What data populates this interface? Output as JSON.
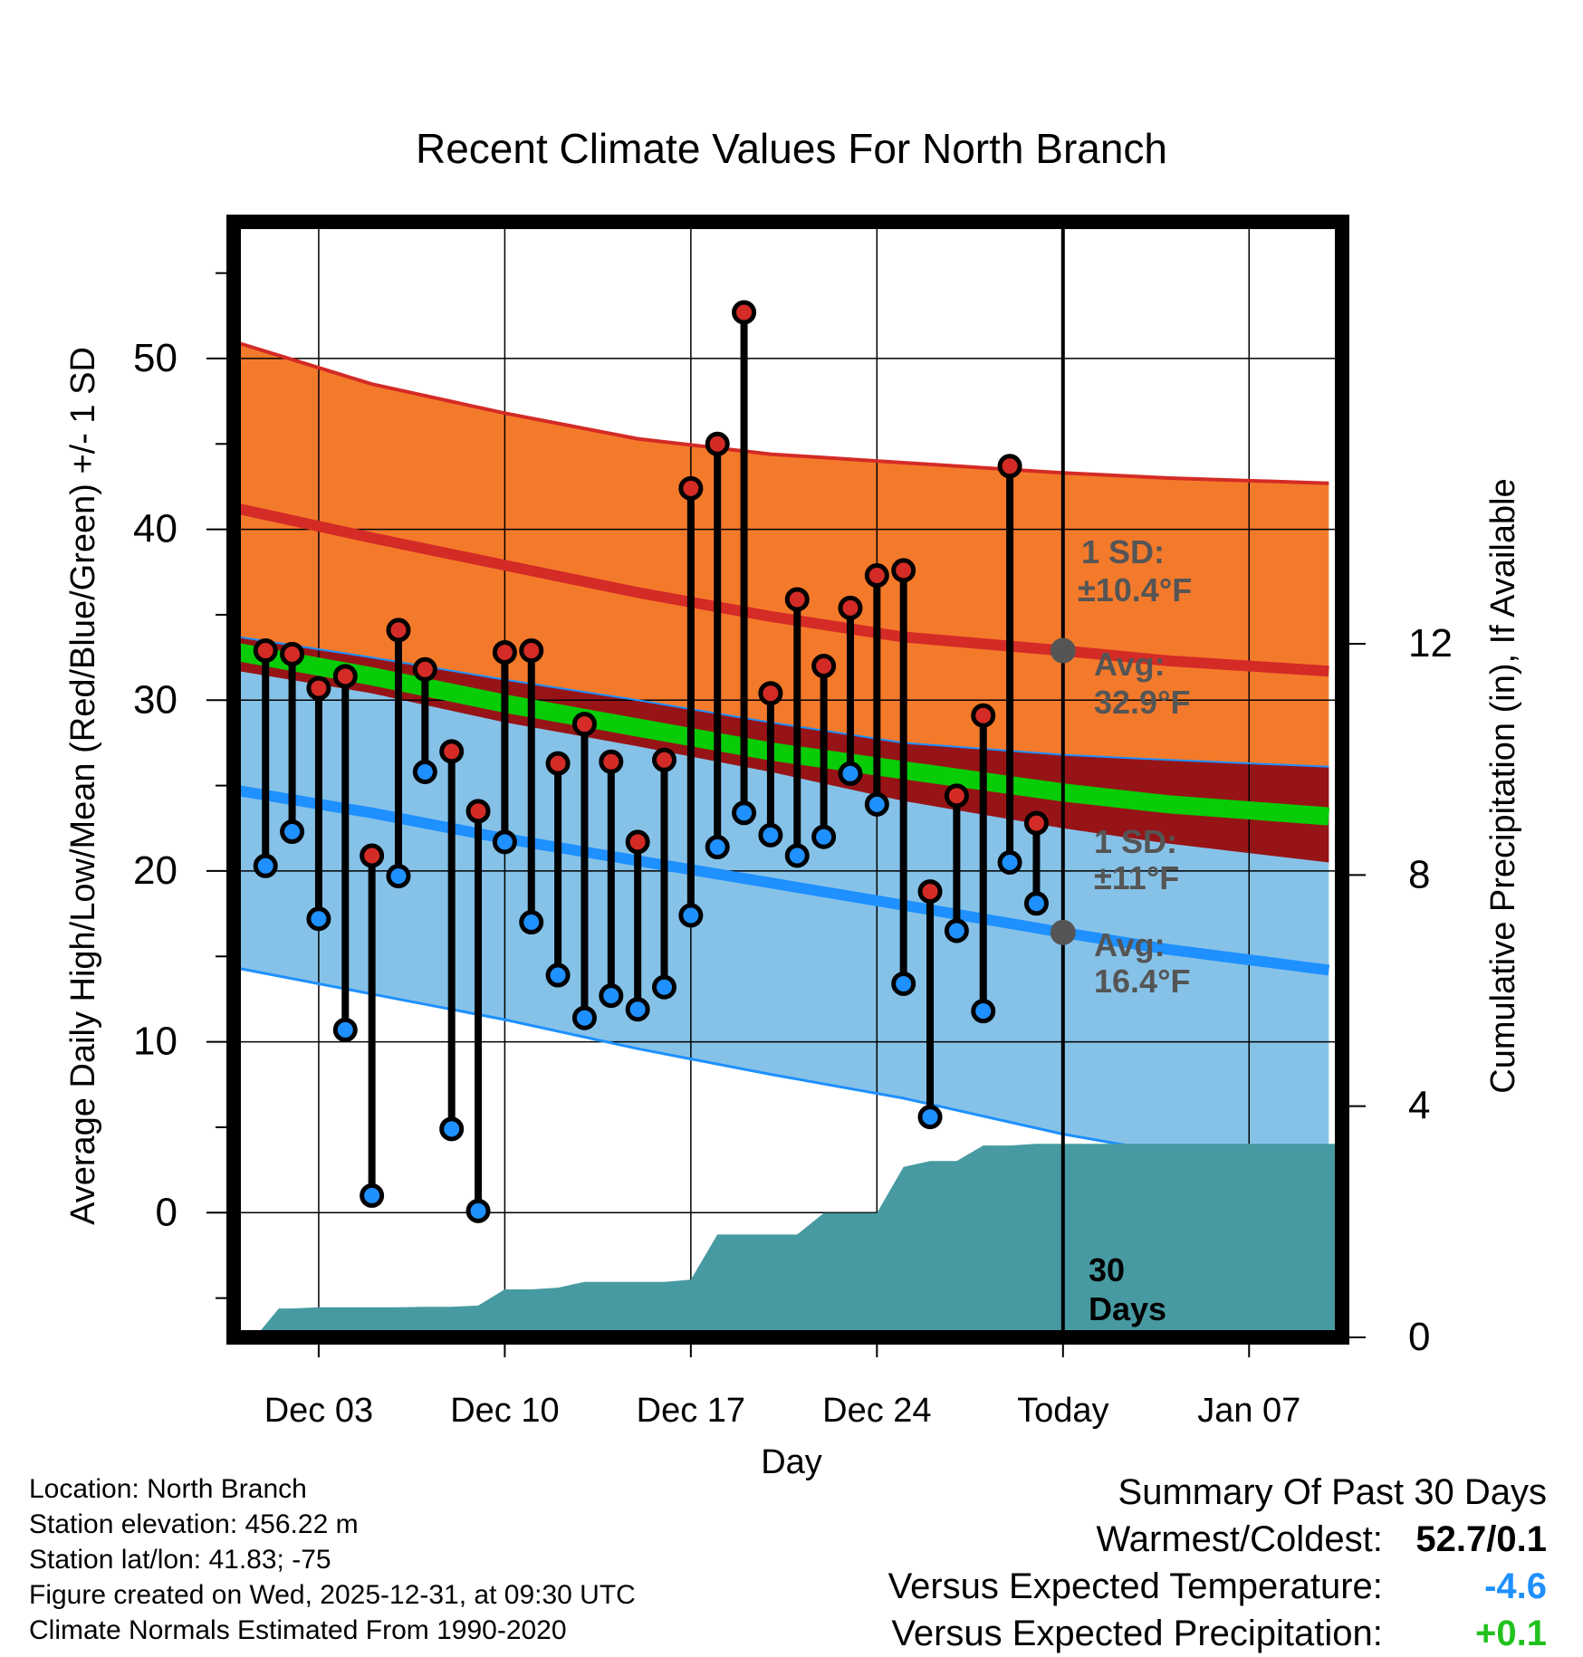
{
  "chart_data": {
    "type": "line",
    "title": "Recent Climate Values For North Branch",
    "xlabel": "Day",
    "ylabel_left": "Average Daily High/Low/Mean (Red/Blue/Green) +/- 1 SD",
    "ylabel_right": "Cumulative Precipitation (in), If Available",
    "x_ticks": [
      {
        "day": 3,
        "label": "Dec 03"
      },
      {
        "day": 10,
        "label": "Dec 10"
      },
      {
        "day": 17,
        "label": "Dec 17"
      },
      {
        "day": 24,
        "label": "Dec 24"
      },
      {
        "day": 31,
        "label": "Today"
      },
      {
        "day": 38,
        "label": "Jan 07"
      }
    ],
    "xlim": [
      -0.2,
      41.5
    ],
    "ylim_left": [
      -7.3,
      58
    ],
    "ylim_right": [
      0,
      19.3
    ],
    "y_left_ticks": [
      0,
      10,
      20,
      30,
      40,
      50
    ],
    "y_right_ticks": [
      0,
      4,
      8,
      12
    ],
    "normals": {
      "days": [
        0,
        5,
        10,
        15,
        20,
        25,
        31,
        35,
        41
      ],
      "high_mean": [
        41.2,
        39.5,
        37.9,
        36.3,
        34.9,
        33.7,
        32.9,
        32.3,
        31.7
      ],
      "high_upper": [
        50.9,
        48.5,
        46.8,
        45.3,
        44.4,
        43.9,
        43.3,
        43.0,
        42.7
      ],
      "high_lower": [
        31.7,
        30.4,
        28.7,
        27.3,
        25.8,
        24.1,
        22.5,
        21.6,
        20.5
      ],
      "mean": [
        32.8,
        31.4,
        29.8,
        28.4,
        27.0,
        25.9,
        24.6,
        23.9,
        23.2
      ],
      "low_mean": [
        24.7,
        23.4,
        21.9,
        20.6,
        19.3,
        18.0,
        16.4,
        15.4,
        14.2
      ],
      "low_upper": [
        33.7,
        32.5,
        31.2,
        30.0,
        28.7,
        27.5,
        26.8,
        26.5,
        26.1
      ],
      "low_lower": [
        14.3,
        12.8,
        11.3,
        9.6,
        8.1,
        6.7,
        4.6,
        3.5,
        1.8
      ]
    },
    "series": [
      {
        "name": "High",
        "color": "#d42b26",
        "values": [
          32.9,
          32.7,
          30.7,
          31.4,
          20.9,
          34.1,
          31.8,
          27.0,
          23.5,
          32.8,
          32.9,
          26.3,
          28.6,
          26.4,
          21.7,
          26.5,
          42.4,
          45.0,
          52.7,
          30.4,
          35.9,
          32.0,
          35.4,
          37.3,
          37.6,
          18.8,
          24.4,
          29.1,
          43.7,
          22.8
        ]
      },
      {
        "name": "Low",
        "color": "#1e90ff",
        "values": [
          20.3,
          22.3,
          17.2,
          10.7,
          1.0,
          19.7,
          25.8,
          4.9,
          0.1,
          21.7,
          17.0,
          13.9,
          11.4,
          12.7,
          11.9,
          13.2,
          17.4,
          21.4,
          23.4,
          22.1,
          20.9,
          22.0,
          25.7,
          23.9,
          13.4,
          5.6,
          16.5,
          11.8,
          20.5,
          18.1
        ]
      },
      {
        "name": "Cumulative Precipitation",
        "days": [
          0.6,
          1.5,
          2,
          3,
          4,
          5,
          6,
          7,
          8,
          9,
          10,
          11,
          12,
          13,
          14,
          15,
          16,
          17,
          18,
          19,
          20,
          21,
          22,
          23,
          24,
          25,
          26,
          27,
          28,
          29,
          30,
          31,
          32,
          41.5
        ],
        "values": [
          0,
          0.5,
          0.5,
          0.52,
          0.52,
          0.52,
          0.52,
          0.53,
          0.53,
          0.55,
          0.83,
          0.83,
          0.86,
          0.96,
          0.96,
          0.96,
          0.96,
          1.0,
          1.78,
          1.78,
          1.78,
          1.78,
          2.15,
          2.15,
          2.15,
          2.95,
          3.05,
          3.05,
          3.32,
          3.32,
          3.35,
          3.35,
          3.35,
          3.35
        ]
      }
    ],
    "annotations": {
      "high_sd_label": "1 SD:",
      "high_sd_value": "±10.4°F",
      "high_avg_label": "Avg:",
      "high_avg_value": "32.9°F",
      "low_sd_label": "1 SD:",
      "low_sd_value": "±11°F",
      "low_avg_label": "Avg:",
      "low_avg_value": "16.4°F",
      "window_count": "30",
      "window_unit": "Days"
    },
    "today_day": 31
  },
  "colors": {
    "high_band": "#f47a2b",
    "high_line": "#d42b26",
    "overlap_band": "#971416",
    "mean_line": "#08cc08",
    "low_band": "#86c2e8",
    "low_line": "#1e90ff",
    "precip": "#479aa1",
    "annotation": "#555555"
  },
  "footer": {
    "location": "Location: North Branch",
    "elevation": "Station elevation: 456.22 m",
    "latlon": "Station lat/lon: 41.83; -75",
    "created": "Figure created on Wed, 2025-12-31, at 09:30 UTC",
    "normals": "Climate Normals Estimated From 1990-2020"
  },
  "summary": {
    "heading": "Summary Of Past 30 Days",
    "warmest_label": "Warmest/Coldest:",
    "warmest_value": "52.7/0.1",
    "temp_label": "Versus Expected Temperature:",
    "temp_value": "-4.6",
    "precip_label": "Versus Expected Precipitation:",
    "precip_value": "+0.1"
  }
}
